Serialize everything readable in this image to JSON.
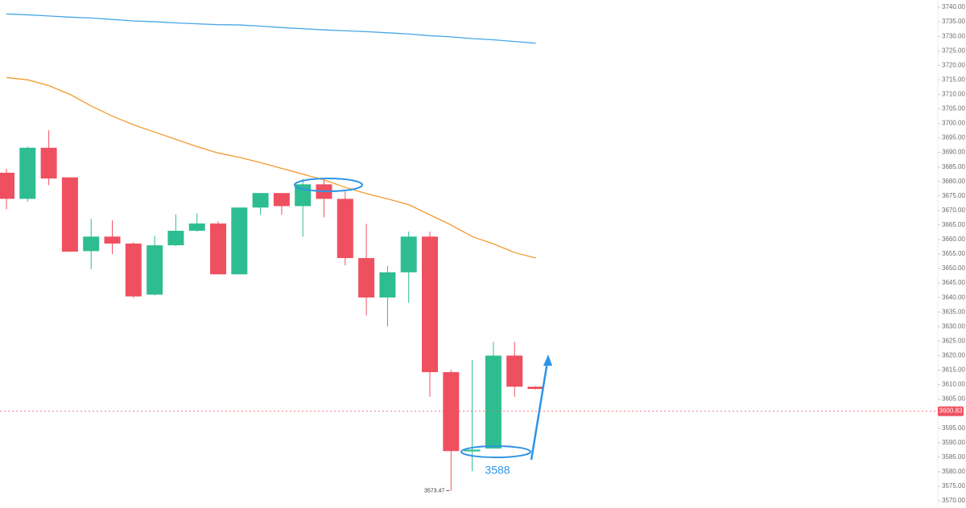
{
  "chart_data": {
    "type": "candlestick",
    "up_color": "#2ebd91",
    "down_color": "#ef5060",
    "open": [
      3683,
      3674,
      3691.6,
      3681.4,
      3656,
      3661,
      3658.6,
      3641,
      3658,
      3663,
      3665.5,
      3648,
      3671,
      3676,
      3671.5,
      3679,
      3674,
      3653.6,
      3640,
      3648.7,
      3661,
      3614.3,
      3587,
      3588,
      3620,
      3609.3
    ],
    "high": [
      3684.4,
      3692,
      3697.6,
      3681.4,
      3667.1,
      3666.6,
      3659,
      3661.3,
      3668.7,
      3669,
      3666.3,
      3671,
      3676,
      3676,
      3680.9,
      3680.3,
      3676.5,
      3665.4,
      3650.9,
      3662.7,
      3662.7,
      3615.1,
      3618.4,
      3624.7,
      3624.7,
      3609.5
    ],
    "low": [
      3670.4,
      3673,
      3678.7,
      3655.8,
      3649.8,
      3655,
      3639.9,
      3640.7,
      3657.7,
      3662.7,
      3648,
      3648,
      3668.5,
      3668.5,
      3661,
      3667.6,
      3651.1,
      3633.8,
      3630,
      3638.2,
      3605.8,
      3573.47,
      3580.2,
      3587.9,
      3605.8,
      3608.3
    ],
    "close": [
      3674,
      3691.6,
      3681,
      3655.8,
      3661,
      3658.6,
      3640.4,
      3658,
      3663,
      3665.5,
      3648,
      3671,
      3676,
      3671.5,
      3679,
      3674,
      3653.6,
      3640,
      3648.7,
      3661,
      3614.3,
      3587.1,
      3587.6,
      3620,
      3609.3,
      3608.5
    ],
    "moving_averages": [
      {
        "color": "#f39a2e",
        "values": [
          3715.8,
          3715,
          3713,
          3710,
          3706,
          3702.5,
          3699.5,
          3697,
          3694.5,
          3692,
          3689.8,
          3688.3,
          3686.5,
          3684.5,
          3682.5,
          3680.5,
          3678,
          3675.8,
          3674,
          3672,
          3668.5,
          3665,
          3661,
          3658.5,
          3655.5,
          3653.6
        ]
      },
      {
        "color": "#45a6e8",
        "values": [
          3737.7,
          3737.4,
          3737,
          3736.6,
          3736.3,
          3735.8,
          3735.3,
          3735,
          3734.6,
          3734.3,
          3734,
          3733.9,
          3733.5,
          3733,
          3732.6,
          3732.2,
          3731.9,
          3731.6,
          3731.2,
          3730.8,
          3730.2,
          3729.8,
          3729.2,
          3728.8,
          3728.2,
          3727.6
        ]
      }
    ],
    "last_price": 3600.83,
    "annotation": "3588",
    "ylim": [
      3567.5,
      3742.5
    ],
    "yticks": [
      {
        "value": 3740,
        "label": "3740.00"
      },
      {
        "value": 3735,
        "label": "3735.00"
      },
      {
        "value": 3730,
        "label": "3730.00"
      },
      {
        "value": 3725,
        "label": "3725.00"
      },
      {
        "value": 3720,
        "label": "3720.00"
      },
      {
        "value": 3715,
        "label": "3715.00"
      },
      {
        "value": 3710,
        "label": "3710.00"
      },
      {
        "value": 3705,
        "label": "3705.00"
      },
      {
        "value": 3700,
        "label": "3700.00"
      },
      {
        "value": 3695,
        "label": "3695.00"
      },
      {
        "value": 3690,
        "label": "3690.00"
      },
      {
        "value": 3685,
        "label": "3685.00"
      },
      {
        "value": 3680,
        "label": "3680.00"
      },
      {
        "value": 3675,
        "label": "3675.00"
      },
      {
        "value": 3670,
        "label": "3670.00"
      },
      {
        "value": 3665,
        "label": "3665.00"
      },
      {
        "value": 3660,
        "label": "3660.00"
      },
      {
        "value": 3655,
        "label": "3655.00"
      },
      {
        "value": 3650,
        "label": "3650.00"
      },
      {
        "value": 3645,
        "label": "3645.00"
      },
      {
        "value": 3640,
        "label": "3640.00"
      },
      {
        "value": 3635,
        "label": "3635.00"
      },
      {
        "value": 3630,
        "label": "3630.00"
      },
      {
        "value": 3625,
        "label": "3625.00"
      },
      {
        "value": 3620,
        "label": "3620.00"
      },
      {
        "value": 3615,
        "label": "3615.00"
      },
      {
        "value": 3610,
        "label": "3610.00"
      },
      {
        "value": 3605,
        "label": "3605.00"
      },
      {
        "value": 3595,
        "label": "3595.00"
      },
      {
        "value": 3590,
        "label": "3590.00"
      },
      {
        "value": 3585,
        "label": "3585.00"
      },
      {
        "value": 3580,
        "label": "3580.00"
      },
      {
        "value": 3575,
        "label": "3575.00"
      },
      {
        "value": 3570,
        "label": "3570.00"
      }
    ]
  }
}
